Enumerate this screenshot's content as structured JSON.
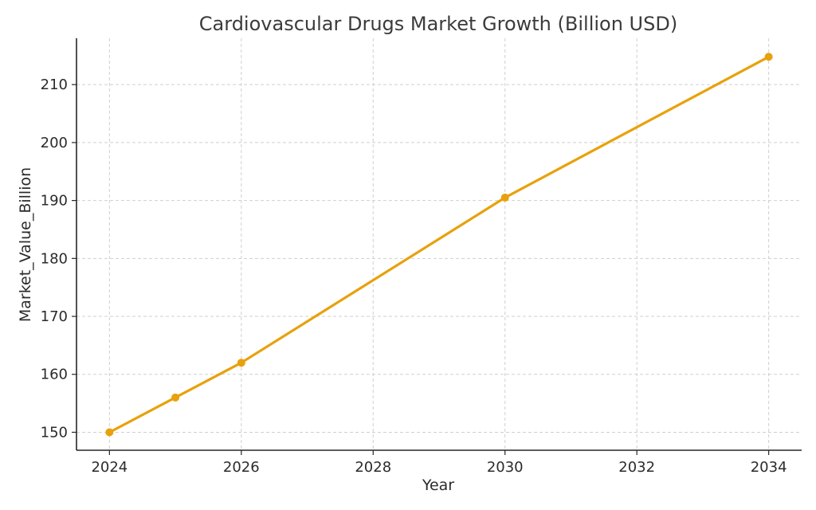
{
  "chart_data": {
    "type": "line",
    "title": "Cardiovascular Drugs Market Growth (Billion USD)",
    "xlabel": "Year",
    "ylabel": "Market_Value_Billion",
    "x_ticks": [
      2024,
      2026,
      2028,
      2030,
      2032,
      2034
    ],
    "y_ticks": [
      150,
      160,
      170,
      180,
      190,
      200,
      210
    ],
    "xlim": [
      2023.5,
      2034.5
    ],
    "ylim": [
      146.9,
      218.0
    ],
    "grid": true,
    "series": [
      {
        "color": "#e8a10c",
        "points": [
          {
            "x": 2024,
            "y": 150.0
          },
          {
            "x": 2025,
            "y": 156.0
          },
          {
            "x": 2026,
            "y": 162.0
          },
          {
            "x": 2030,
            "y": 190.5
          },
          {
            "x": 2034,
            "y": 214.8
          }
        ]
      }
    ]
  }
}
